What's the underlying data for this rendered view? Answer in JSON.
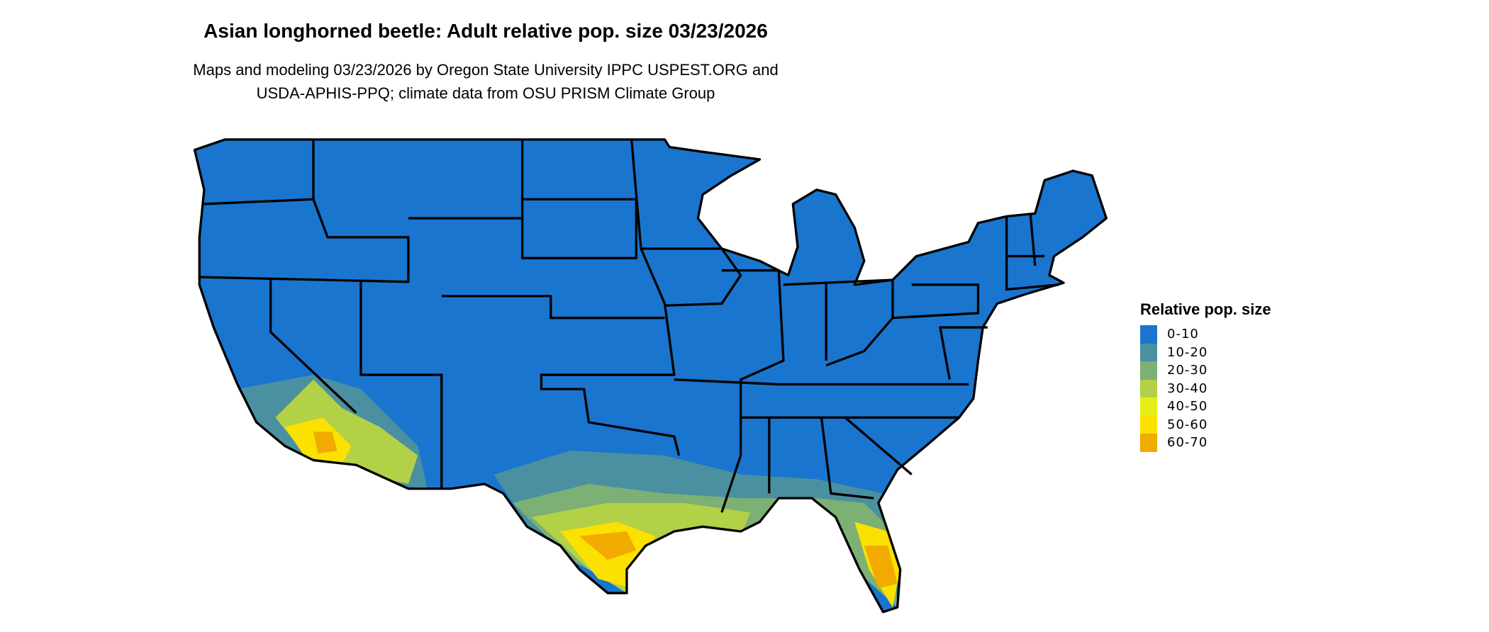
{
  "title": "Asian longhorned beetle: Adult relative pop. size 03/23/2026",
  "subtitle_line1": "Maps and modeling 03/23/2026 by Oregon State University IPPC USPEST.ORG and",
  "subtitle_line2": "USDA-APHIS-PPQ; climate data from OSU PRISM Climate Group",
  "map": {
    "region": "Contiguous United States",
    "base_color": "#1a75cf",
    "border_color": "#000000"
  },
  "legend": {
    "title": "Relative pop. size",
    "items": [
      {
        "label": "0-10",
        "color": "#1a75cf"
      },
      {
        "label": "10-20",
        "color": "#4a90a0"
      },
      {
        "label": "20-30",
        "color": "#7cb075"
      },
      {
        "label": "30-40",
        "color": "#b2d147"
      },
      {
        "label": "40-50",
        "color": "#e6ee16"
      },
      {
        "label": "50-60",
        "color": "#fbe100"
      },
      {
        "label": "60-70",
        "color": "#f0aa00"
      }
    ]
  }
}
